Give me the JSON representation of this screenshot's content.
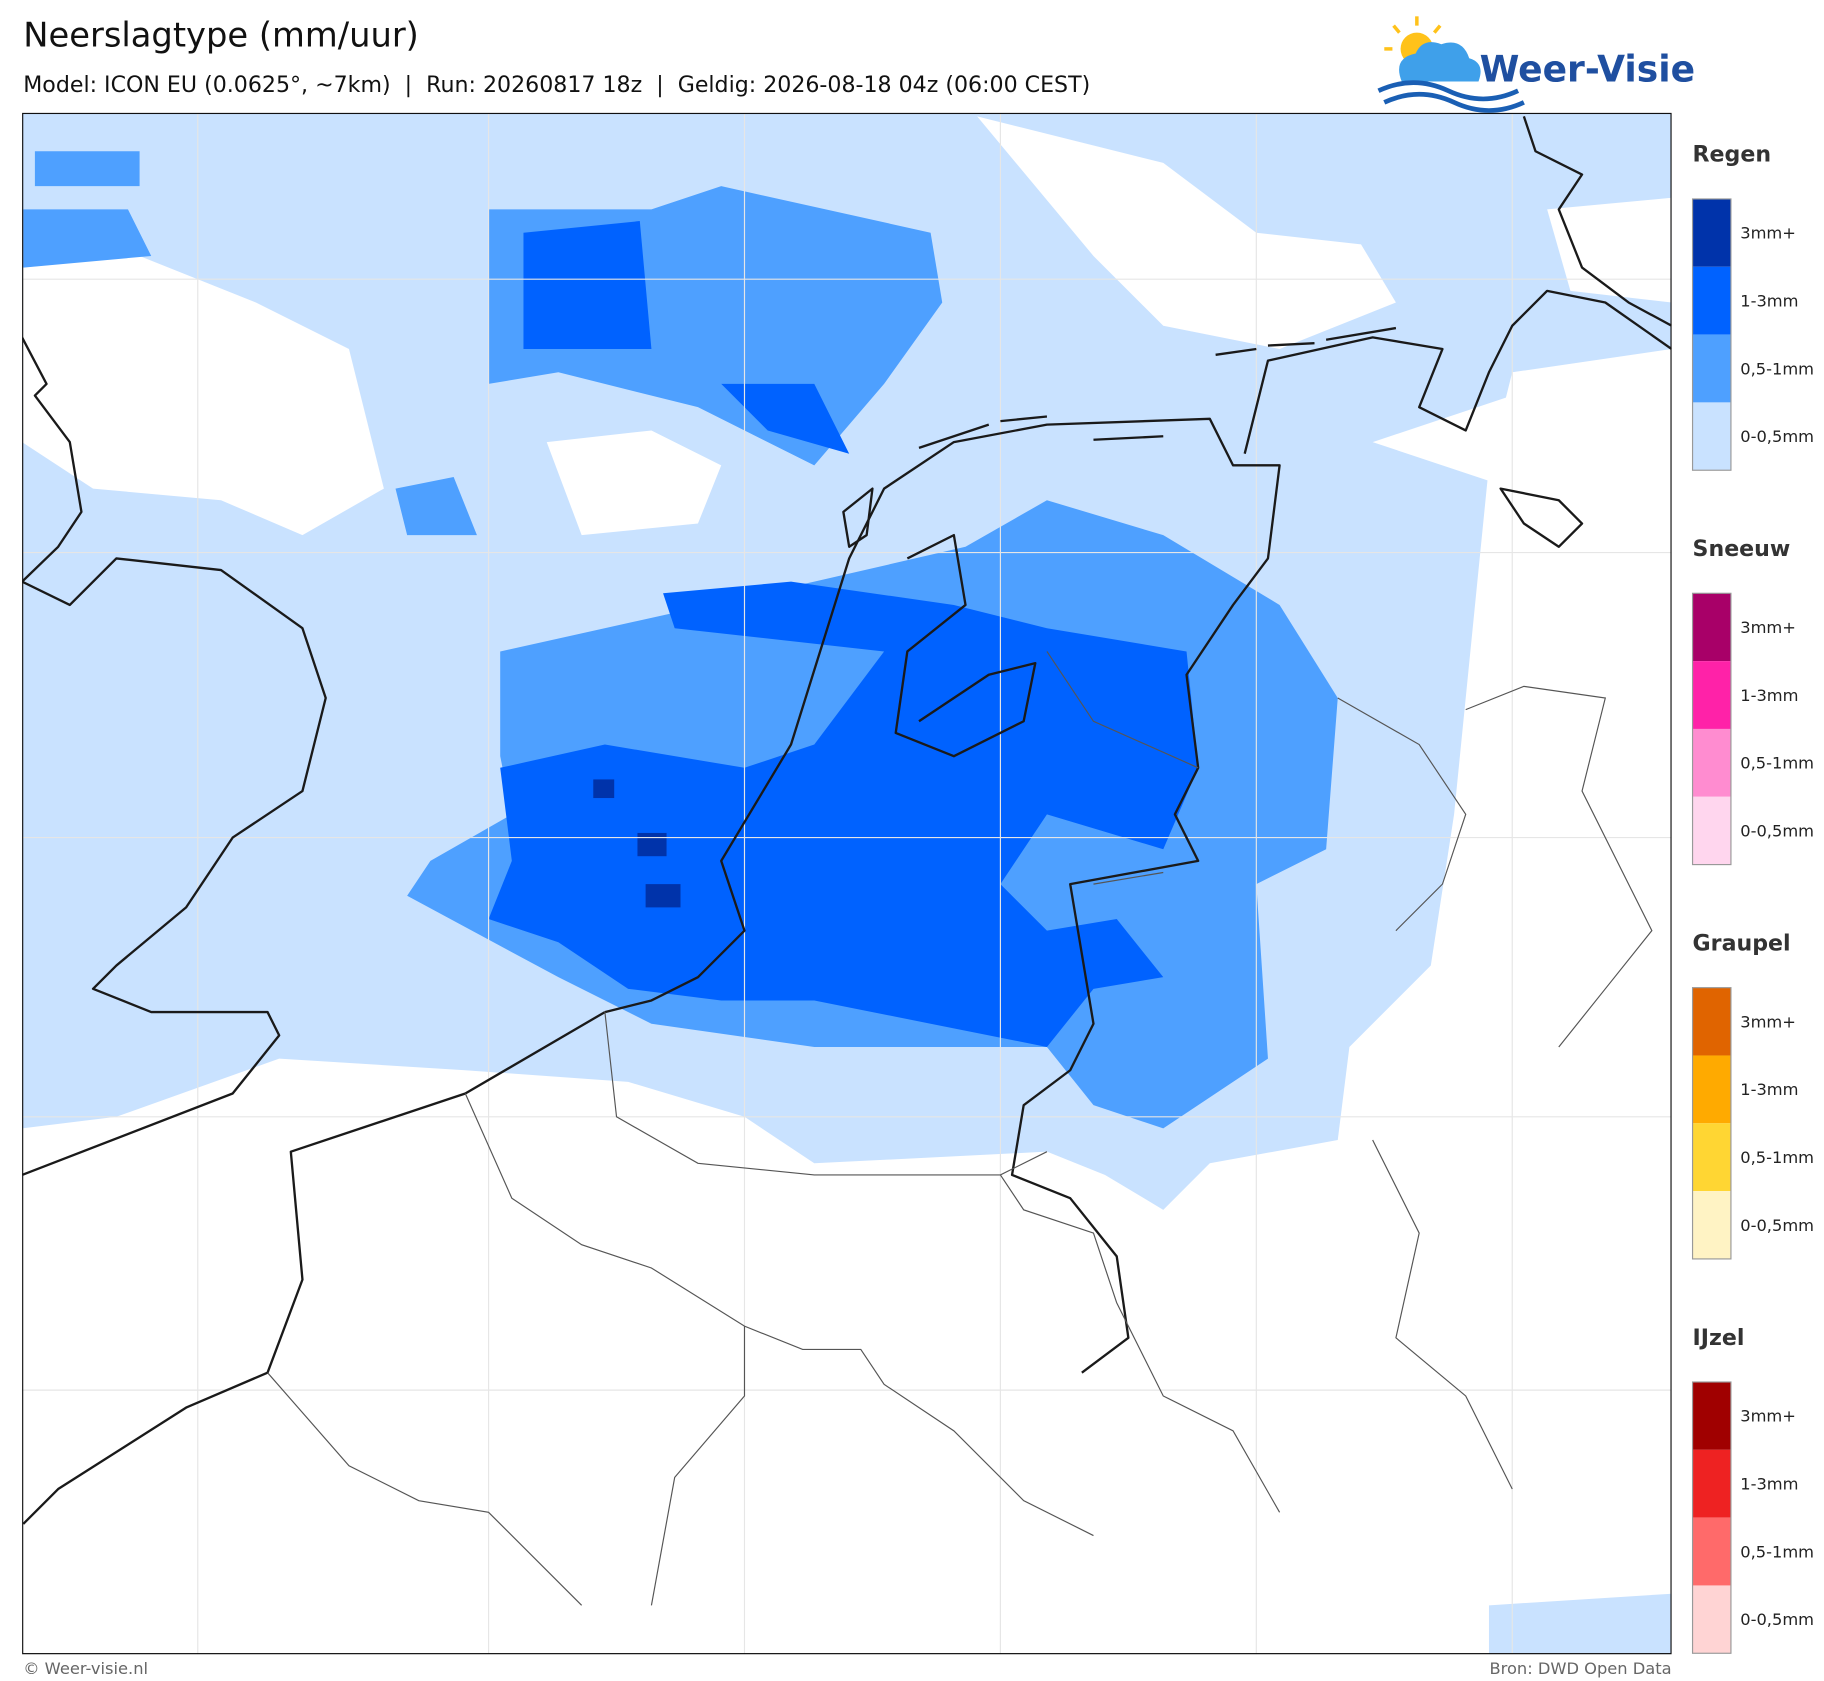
{
  "header": {
    "title": "Neerslagtype (mm/uur)",
    "subtitle": "Model: ICON EU (0.0625°, ~7km)  |  Run: 20260817 18z  |  Geldig: 2026-08-18 04z (06:00 CEST)",
    "logo": "Weer-Visie"
  },
  "legend": [
    {
      "title": "Regen",
      "items": [
        {
          "label": "3mm+",
          "color": "#0033aa"
        },
        {
          "label": "1-3mm",
          "color": "#0062ff"
        },
        {
          "label": "0,5-1mm",
          "color": "#4ea0ff"
        },
        {
          "label": "0-0,5mm",
          "color": "#c9e2ff"
        }
      ]
    },
    {
      "title": "Sneeuw",
      "items": [
        {
          "label": "3mm+",
          "color": "#a80068"
        },
        {
          "label": "1-3mm",
          "color": "#ff22a8"
        },
        {
          "label": "0,5-1mm",
          "color": "#ff8cd0"
        },
        {
          "label": "0-0,5mm",
          "color": "#ffd6ee"
        }
      ]
    },
    {
      "title": "Graupel",
      "items": [
        {
          "label": "3mm+",
          "color": "#e06400"
        },
        {
          "label": "1-3mm",
          "color": "#ffaa00"
        },
        {
          "label": "0,5-1mm",
          "color": "#ffd633"
        },
        {
          "label": "0-0,5mm",
          "color": "#fff3c4"
        }
      ]
    },
    {
      "title": "IJzel",
      "items": [
        {
          "label": "3mm+",
          "color": "#a00000"
        },
        {
          "label": "1-3mm",
          "color": "#ee2222"
        },
        {
          "label": "0,5-1mm",
          "color": "#ff6a6a"
        },
        {
          "label": "0-0,5mm",
          "color": "#ffd4d4"
        }
      ]
    }
  ],
  "footer": {
    "left": "© Weer-visie.nl",
    "right": "Bron: DWD Open Data"
  }
}
